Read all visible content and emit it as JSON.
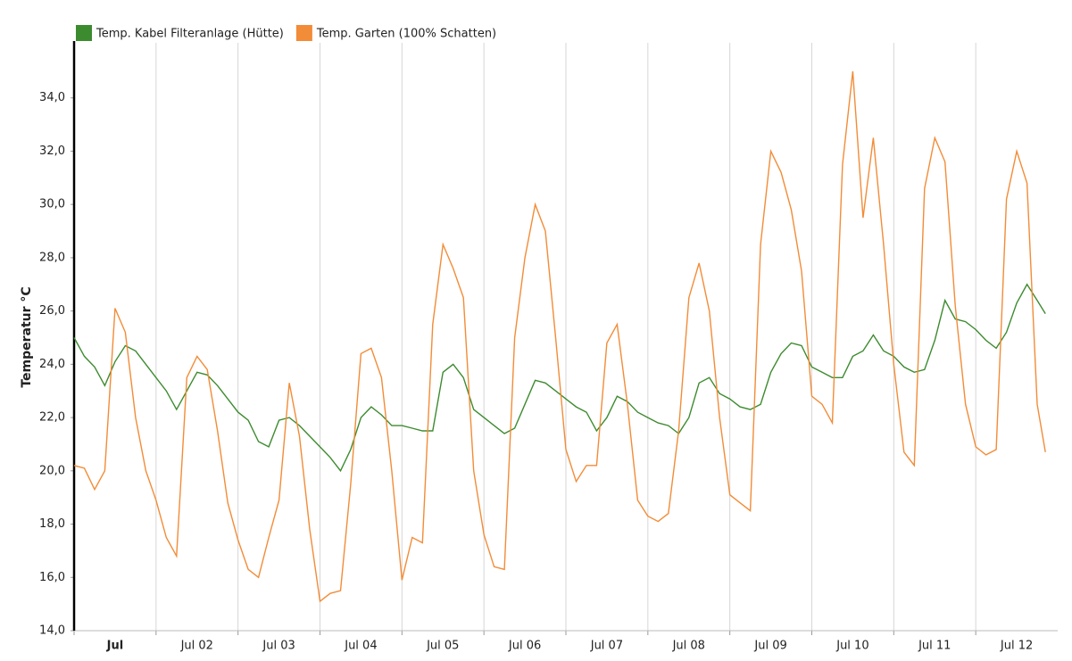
{
  "chart_data": {
    "type": "line",
    "y_label": "Temperatur °C",
    "x": [
      0,
      0.125,
      0.25,
      0.375,
      0.5,
      0.625,
      0.75,
      0.875,
      1,
      1.125,
      1.25,
      1.375,
      1.5,
      1.625,
      1.75,
      1.875,
      2,
      2.125,
      2.25,
      2.375,
      2.5,
      2.625,
      2.75,
      2.875,
      3,
      3.125,
      3.25,
      3.375,
      3.5,
      3.625,
      3.75,
      3.875,
      4,
      4.125,
      4.25,
      4.375,
      4.5,
      4.625,
      4.75,
      4.875,
      5,
      5.125,
      5.25,
      5.375,
      5.5,
      5.625,
      5.75,
      5.875,
      6,
      6.125,
      6.25,
      6.375,
      6.5,
      6.625,
      6.75,
      6.875,
      7,
      7.125,
      7.25,
      7.375,
      7.5,
      7.625,
      7.75,
      7.875,
      8,
      8.125,
      8.25,
      8.375,
      8.5,
      8.625,
      8.75,
      8.875,
      9,
      9.125,
      9.25,
      9.375,
      9.5,
      9.625,
      9.75,
      9.875,
      10,
      10.125,
      10.25,
      10.375,
      10.5,
      10.625,
      10.75,
      10.875,
      11,
      11.125,
      11.25,
      11.375,
      11.5,
      11.625,
      11.75,
      11.85
    ],
    "series": [
      {
        "name": "Temp. Kabel Filteranlage (Hütte)",
        "color": "#3d8b2f",
        "values": [
          25.0,
          24.3,
          23.9,
          23.2,
          24.1,
          24.7,
          24.5,
          24.0,
          23.5,
          23.0,
          22.3,
          23.0,
          23.7,
          23.6,
          23.2,
          22.7,
          22.2,
          21.9,
          21.1,
          20.9,
          21.9,
          22.0,
          21.7,
          21.3,
          20.9,
          20.5,
          20.0,
          20.8,
          22.0,
          22.4,
          22.1,
          21.7,
          21.7,
          21.6,
          21.5,
          21.5,
          23.7,
          24.0,
          23.5,
          22.3,
          22.0,
          21.7,
          21.4,
          21.6,
          22.5,
          23.4,
          23.3,
          23.0,
          22.7,
          22.4,
          22.2,
          21.5,
          22.0,
          22.8,
          22.6,
          22.2,
          22.0,
          21.8,
          21.7,
          21.4,
          22.0,
          23.3,
          23.5,
          22.9,
          22.7,
          22.4,
          22.3,
          22.5,
          23.7,
          24.4,
          24.8,
          24.7,
          23.9,
          23.7,
          23.5,
          23.5,
          24.3,
          24.5,
          25.1,
          24.5,
          24.3,
          23.9,
          23.7,
          23.8,
          24.9,
          26.4,
          25.7,
          25.6,
          25.3,
          24.9,
          24.6,
          25.2,
          26.3,
          27.0,
          26.4,
          25.9
        ]
      },
      {
        "name": "Temp. Garten (100% Schatten)",
        "color": "#f28c38",
        "values": [
          20.2,
          20.1,
          19.3,
          20.0,
          26.1,
          25.2,
          22.0,
          20.0,
          18.9,
          17.5,
          16.8,
          23.5,
          24.3,
          23.8,
          21.5,
          18.8,
          17.4,
          16.3,
          16.0,
          17.5,
          18.9,
          23.3,
          21.3,
          17.8,
          15.1,
          15.4,
          15.5,
          19.5,
          24.4,
          24.6,
          23.5,
          20.0,
          15.9,
          17.5,
          17.3,
          25.5,
          28.5,
          27.6,
          26.5,
          20.0,
          17.6,
          16.4,
          16.3,
          25.0,
          28.0,
          30.0,
          29.0,
          25.0,
          20.8,
          19.6,
          20.2,
          20.2,
          24.8,
          25.5,
          22.5,
          18.9,
          18.3,
          18.1,
          18.4,
          21.5,
          26.5,
          27.8,
          26.0,
          22.0,
          19.1,
          18.8,
          18.5,
          28.5,
          32.0,
          31.2,
          29.8,
          27.5,
          22.8,
          22.5,
          21.8,
          31.5,
          35.0,
          29.5,
          32.5,
          28.5,
          24.0,
          20.7,
          20.2,
          30.6,
          32.5,
          31.6,
          26.2,
          22.5,
          20.9,
          20.6,
          20.8,
          30.2,
          32.0,
          30.8,
          22.5,
          20.7
        ]
      }
    ],
    "xlim": [
      0,
      12
    ],
    "xticks": [
      {
        "value": 0,
        "label": "Jul"
      },
      {
        "value": 1,
        "label": "Jul 02"
      },
      {
        "value": 2,
        "label": "Jul 03"
      },
      {
        "value": 3,
        "label": "Jul 04"
      },
      {
        "value": 4,
        "label": "Jul 05"
      },
      {
        "value": 5,
        "label": "Jul 06"
      },
      {
        "value": 6,
        "label": "Jul 07"
      },
      {
        "value": 7,
        "label": "Jul 08"
      },
      {
        "value": 8,
        "label": "Jul 09"
      },
      {
        "value": 9,
        "label": "Jul 10"
      },
      {
        "value": 10,
        "label": "Jul 11"
      },
      {
        "value": 11,
        "label": "Jul 12"
      }
    ],
    "ylim": [
      14,
      36
    ],
    "yticks": [
      {
        "value": 14,
        "label": "14,0"
      },
      {
        "value": 16,
        "label": "16,0"
      },
      {
        "value": 18,
        "label": "18,0"
      },
      {
        "value": 20,
        "label": "20,0"
      },
      {
        "value": 22,
        "label": "22,0"
      },
      {
        "value": 24,
        "label": "24,0"
      },
      {
        "value": 26,
        "label": "26,0"
      },
      {
        "value": 28,
        "label": "28,0"
      },
      {
        "value": 30,
        "label": "30,0"
      },
      {
        "value": 32,
        "label": "32,0"
      },
      {
        "value": 34,
        "label": "34,0"
      }
    ],
    "grid": true
  }
}
